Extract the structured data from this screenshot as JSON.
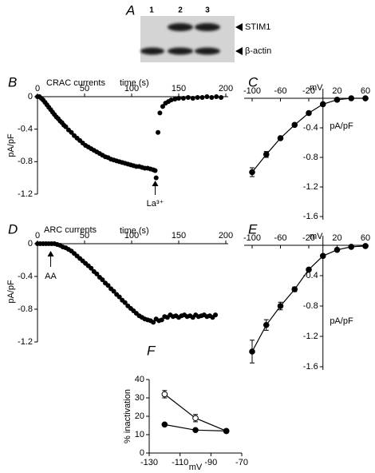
{
  "blot": {
    "panel": "A",
    "lanes": [
      "1",
      "2",
      "3"
    ],
    "bands": [
      "STIM1",
      "β-actin"
    ]
  },
  "chart_data": [
    {
      "type": "scatter",
      "panel": "B",
      "title": "CRAC currents",
      "xlabel": "time (s)",
      "ylabel": "pA/pF",
      "annotation": "La³⁺",
      "x": [
        0,
        2,
        4,
        6,
        8,
        10,
        12,
        14,
        16,
        18,
        20,
        22,
        24,
        26,
        28,
        30,
        33,
        36,
        39,
        42,
        45,
        48,
        51,
        54,
        57,
        60,
        63,
        66,
        69,
        72,
        75,
        78,
        81,
        84,
        87,
        90,
        93,
        96,
        99,
        102,
        105,
        108,
        111,
        114,
        117,
        120,
        123,
        125,
        126,
        128,
        130,
        133,
        136,
        139,
        142,
        146,
        150,
        155,
        160,
        165,
        170,
        175,
        180,
        185,
        190,
        195
      ],
      "values": [
        0,
        0,
        -0.02,
        -0.04,
        -0.07,
        -0.1,
        -0.13,
        -0.16,
        -0.19,
        -0.22,
        -0.25,
        -0.27,
        -0.3,
        -0.32,
        -0.35,
        -0.37,
        -0.41,
        -0.44,
        -0.48,
        -0.51,
        -0.54,
        -0.57,
        -0.6,
        -0.62,
        -0.64,
        -0.66,
        -0.68,
        -0.7,
        -0.72,
        -0.74,
        -0.75,
        -0.77,
        -0.78,
        -0.79,
        -0.8,
        -0.81,
        -0.82,
        -0.83,
        -0.84,
        -0.85,
        -0.86,
        -0.86,
        -0.87,
        -0.88,
        -0.88,
        -0.89,
        -0.9,
        -0.91,
        -1.0,
        -0.44,
        -0.2,
        -0.12,
        -0.08,
        -0.06,
        -0.04,
        -0.03,
        -0.02,
        -0.02,
        -0.01,
        -0.02,
        -0.01,
        -0.01,
        0,
        -0.01,
        0,
        -0.01
      ],
      "color": "#000000",
      "xlim": [
        0,
        200
      ],
      "ylim": [
        -1.2,
        0
      ],
      "xticks": [
        0,
        50,
        100,
        150,
        200
      ],
      "yticks": [
        0,
        -0.4,
        -0.8,
        -1.2
      ]
    },
    {
      "type": "line",
      "panel": "C",
      "xlabel": "mV",
      "ylabel": "pA/pF",
      "x": [
        -100,
        -80,
        -60,
        -40,
        -20,
        0,
        20,
        40,
        60
      ],
      "values": [
        -1.0,
        -0.76,
        -0.54,
        -0.36,
        -0.2,
        -0.08,
        -0.02,
        0,
        0
      ],
      "errors": [
        0.06,
        0.04,
        0.02,
        0.02,
        0.02,
        0.01,
        0.01,
        0.01,
        0.01
      ],
      "color": "#000000",
      "xlim": [
        -100,
        60
      ],
      "ylim": [
        -1.6,
        0
      ],
      "xticks": [
        -100,
        -60,
        -20,
        20,
        60
      ],
      "yticks": [
        -0.4,
        -0.8,
        -1.2,
        -1.6
      ]
    },
    {
      "type": "scatter",
      "panel": "D",
      "title": "ARC currents",
      "xlabel": "time (s)",
      "ylabel": "pA/pF",
      "annotation": "AA",
      "x": [
        0,
        3,
        6,
        9,
        12,
        15,
        18,
        21,
        24,
        27,
        30,
        33,
        36,
        39,
        42,
        45,
        48,
        51,
        54,
        57,
        60,
        63,
        66,
        69,
        72,
        75,
        78,
        81,
        84,
        87,
        90,
        93,
        96,
        99,
        102,
        105,
        108,
        111,
        114,
        117,
        120,
        123,
        126,
        129,
        132,
        135,
        138,
        141,
        144,
        147,
        150,
        153,
        156,
        159,
        162,
        165,
        168,
        171,
        174,
        177,
        180,
        183,
        186,
        189
      ],
      "values": [
        0,
        0,
        0,
        0,
        0,
        0,
        0,
        -0.01,
        -0.02,
        -0.04,
        -0.05,
        -0.07,
        -0.09,
        -0.12,
        -0.15,
        -0.18,
        -0.21,
        -0.24,
        -0.27,
        -0.3,
        -0.34,
        -0.37,
        -0.41,
        -0.44,
        -0.48,
        -0.51,
        -0.55,
        -0.58,
        -0.62,
        -0.65,
        -0.69,
        -0.72,
        -0.76,
        -0.79,
        -0.82,
        -0.85,
        -0.88,
        -0.9,
        -0.92,
        -0.93,
        -0.94,
        -0.96,
        -0.92,
        -0.94,
        -0.93,
        -0.89,
        -0.9,
        -0.87,
        -0.89,
        -0.88,
        -0.9,
        -0.88,
        -0.87,
        -0.89,
        -0.88,
        -0.9,
        -0.87,
        -0.89,
        -0.88,
        -0.87,
        -0.89,
        -0.88,
        -0.9,
        -0.87
      ],
      "color": "#000000",
      "xlim": [
        0,
        200
      ],
      "ylim": [
        -1.2,
        0
      ],
      "xticks": [
        0,
        50,
        100,
        150,
        200
      ],
      "yticks": [
        0,
        -0.4,
        -0.8,
        -1.2
      ]
    },
    {
      "type": "line",
      "panel": "E",
      "xlabel": "mV",
      "ylabel": "pA/pF",
      "x": [
        -100,
        -80,
        -60,
        -40,
        -20,
        0,
        20,
        40,
        60
      ],
      "values": [
        -1.4,
        -1.05,
        -0.8,
        -0.58,
        -0.32,
        -0.14,
        -0.06,
        -0.02,
        -0.01
      ],
      "errors": [
        0.15,
        0.07,
        0.05,
        0.03,
        0.02,
        0.02,
        0.01,
        0.01,
        0.01
      ],
      "color": "#000000",
      "xlim": [
        -100,
        60
      ],
      "ylim": [
        -1.6,
        0
      ],
      "xticks": [
        -100,
        -60,
        -20,
        20,
        60
      ],
      "yticks": [
        -0.4,
        -0.8,
        -1.2,
        -1.6
      ]
    },
    {
      "type": "line",
      "panel": "F",
      "xlabel": "mV",
      "ylabel": "% inactivation",
      "x": [
        -120,
        -100,
        -80
      ],
      "series": [
        {
          "color": "#000000",
          "filled": false,
          "values": [
            32,
            19,
            12
          ],
          "errors": [
            2,
            2,
            1
          ]
        },
        {
          "color": "#000000",
          "filled": true,
          "values": [
            15.5,
            12.5,
            12
          ]
        }
      ],
      "xlim": [
        -130,
        -70
      ],
      "ylim": [
        0,
        40
      ],
      "xticks": [
        -130,
        -110,
        -90,
        -70
      ],
      "yticks": [
        0,
        10,
        20,
        30,
        40
      ]
    }
  ]
}
